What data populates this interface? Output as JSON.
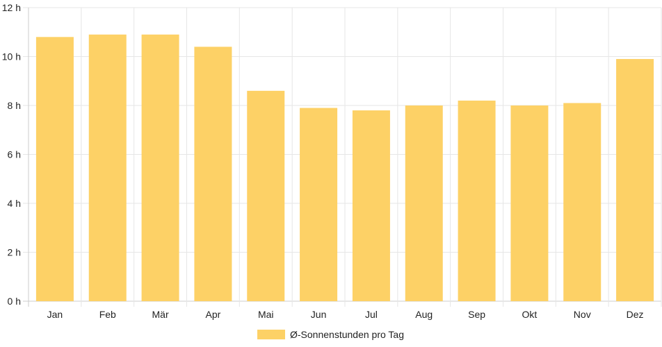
{
  "chart_data": {
    "type": "bar",
    "categories": [
      "Jan",
      "Feb",
      "Mär",
      "Apr",
      "Mai",
      "Jun",
      "Jul",
      "Aug",
      "Sep",
      "Okt",
      "Nov",
      "Dez"
    ],
    "series": [
      {
        "name": "Ø-Sonnenstunden pro Tag",
        "values": [
          10.8,
          10.9,
          10.9,
          10.4,
          8.6,
          7.9,
          7.8,
          8.0,
          8.2,
          8.0,
          8.1,
          9.9
        ],
        "color": "#fdd166"
      }
    ],
    "y_unit": "h",
    "ylim": [
      0,
      12
    ],
    "y_ticks": [
      0,
      2,
      4,
      6,
      8,
      10,
      12
    ],
    "grid": true,
    "legend_position": "bottom"
  },
  "colors": {
    "bar": "#fdd166",
    "grid": "#e6e6e6",
    "axis": "#cccccc",
    "text": "#222222"
  }
}
